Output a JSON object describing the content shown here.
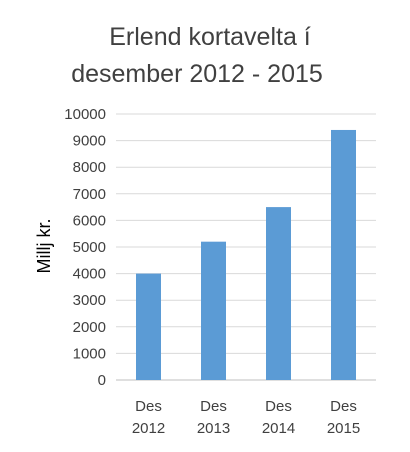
{
  "chart_data": {
    "type": "bar",
    "title_lines": [
      "Erlend kortavelta í",
      "desember 2012 - 2015"
    ],
    "categories": [
      [
        "Des",
        "2012"
      ],
      [
        "Des",
        "2013"
      ],
      [
        "Des",
        "2014"
      ],
      [
        "Des",
        "2015"
      ]
    ],
    "values": [
      4000,
      5200,
      6500,
      9400
    ],
    "ylabel": "Millj kr.",
    "xlabel": "",
    "ylim": [
      0,
      10000
    ],
    "yticks": [
      0,
      1000,
      2000,
      3000,
      4000,
      5000,
      6000,
      7000,
      8000,
      9000,
      10000
    ],
    "grid": true,
    "legend": "none",
    "bar_color": "#5B9BD5",
    "grid_color": "#D9D9D9",
    "axis_color": "#BFBFBF"
  }
}
